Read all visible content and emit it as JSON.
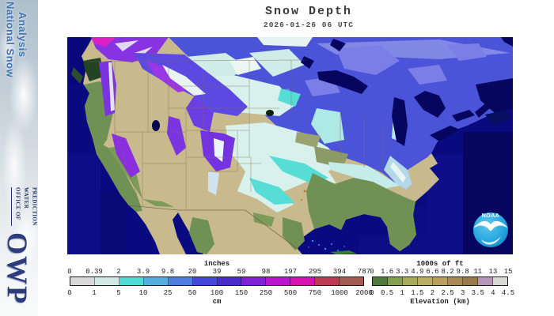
{
  "page": {
    "background": "#ffffff"
  },
  "sidebar": {
    "banner_line1": "National Snow",
    "banner_line2": "Analysis",
    "office_lines": [
      "OFFICE OF",
      "WATER",
      "PREDICTION"
    ],
    "owp_label": "OWP",
    "banner_color": "#3e74b2",
    "office_color": "#223468"
  },
  "header": {
    "title": "Snow Depth",
    "datetime": "2026-01-26 06 UTC"
  },
  "map": {
    "noaa_logo_label": "NOAA",
    "ocean_color": "#0a0a80"
  },
  "legends": {
    "snow_depth": {
      "top_unit_label": "inches",
      "bottom_unit_label": "cm",
      "top_ticks": [
        "0",
        "0.39",
        "2",
        "3.9",
        "9.8",
        "20",
        "39",
        "59",
        "98",
        "197",
        "295",
        "394",
        "787"
      ],
      "bottom_ticks": [
        "0",
        "1",
        "5",
        "10",
        "25",
        "50",
        "100",
        "150",
        "250",
        "500",
        "750",
        "1000",
        "2000"
      ],
      "segment_colors": [
        "#d9d9d9",
        "#cfeae5",
        "#4fdcd6",
        "#55aee2",
        "#4f7ce0",
        "#4447dc",
        "#4a2cc9",
        "#8021d8",
        "#bb14cc",
        "#d612b2",
        "#bb3b52",
        "#a15c4f"
      ]
    },
    "elevation": {
      "top_unit_label": "1000s of ft",
      "bottom_axis_label": "Elevation (km)",
      "top_ticks": [
        "0",
        "1.6",
        "3.3",
        "4.9",
        "6.6",
        "8.2",
        "9.8",
        "11",
        "13",
        "15"
      ],
      "bottom_ticks": [
        "0",
        "0.5",
        "1",
        "1.5",
        "2",
        "2.5",
        "3",
        "3.5",
        "4",
        "4.5"
      ],
      "segment_colors": [
        "#4f7a3d",
        "#83a04f",
        "#a8aa57",
        "#bcae60",
        "#b89f5e",
        "#aa8a52",
        "#9a7a4c",
        "#b795bb",
        "#d8d8d4"
      ]
    }
  }
}
